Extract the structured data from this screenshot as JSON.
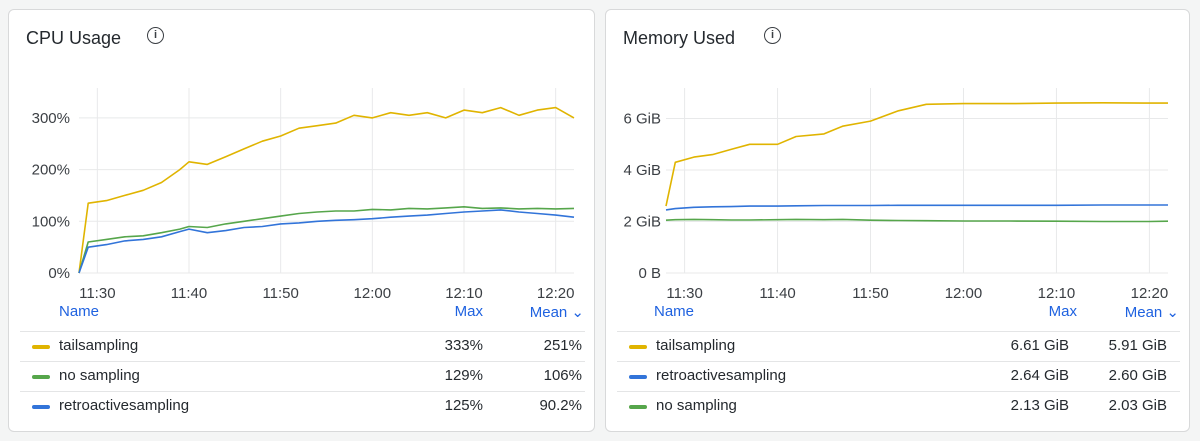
{
  "colors": {
    "tailsampling": "#e0b400",
    "no_sampling": "#56a64b",
    "retroactivesampling": "#3274d9"
  },
  "cpu_panel": {
    "title": "CPU Usage",
    "info_icon": "info-icon",
    "legend": {
      "headers": {
        "name": "Name",
        "max": "Max",
        "mean": "Mean ⌄"
      },
      "rows": [
        {
          "name": "tailsampling",
          "max": "333%",
          "mean": "251%"
        },
        {
          "name": "no sampling",
          "max": "129%",
          "mean": "106%"
        },
        {
          "name": "retroactivesampling",
          "max": "125%",
          "mean": "90.2%"
        }
      ]
    }
  },
  "mem_panel": {
    "title": "Memory Used",
    "info_icon": "info-icon",
    "legend": {
      "headers": {
        "name": "Name",
        "max": "Max",
        "mean": "Mean ⌄"
      },
      "rows": [
        {
          "name": "tailsampling",
          "max": "6.61 GiB",
          "mean": "5.91 GiB"
        },
        {
          "name": "retroactivesampling",
          "max": "2.64 GiB",
          "mean": "2.60 GiB"
        },
        {
          "name": "no sampling",
          "max": "2.13 GiB",
          "mean": "2.03 GiB"
        }
      ]
    }
  },
  "chart_data": [
    {
      "type": "line",
      "title": "CPU Usage",
      "x_ticks": [
        "11:30",
        "11:40",
        "11:50",
        "12:00",
        "12:10",
        "12:20"
      ],
      "y_ticks": [
        "0%",
        "100%",
        "200%",
        "300%"
      ],
      "ylim": [
        0,
        333
      ],
      "grid": true,
      "legend_position": "bottom",
      "x": [
        "11:28",
        "11:29",
        "11:31",
        "11:33",
        "11:35",
        "11:37",
        "11:39",
        "11:40",
        "11:42",
        "11:44",
        "11:46",
        "11:48",
        "11:50",
        "11:52",
        "11:54",
        "11:56",
        "11:58",
        "12:00",
        "12:02",
        "12:04",
        "12:06",
        "12:08",
        "12:10",
        "12:12",
        "12:14",
        "12:16",
        "12:18",
        "12:20",
        "12:22"
      ],
      "series": [
        {
          "name": "tailsampling",
          "values": [
            0,
            135,
            140,
            150,
            160,
            175,
            200,
            215,
            210,
            225,
            240,
            255,
            265,
            280,
            285,
            290,
            305,
            300,
            310,
            305,
            310,
            300,
            315,
            310,
            320,
            305,
            315,
            320,
            300
          ]
        },
        {
          "name": "no sampling",
          "values": [
            0,
            60,
            65,
            70,
            72,
            78,
            85,
            90,
            88,
            95,
            100,
            105,
            110,
            115,
            118,
            120,
            120,
            123,
            122,
            125,
            124,
            126,
            128,
            125,
            126,
            124,
            125,
            124,
            125
          ]
        },
        {
          "name": "retroactivesampling",
          "values": [
            0,
            50,
            55,
            62,
            65,
            70,
            80,
            85,
            78,
            82,
            88,
            90,
            95,
            97,
            100,
            102,
            103,
            105,
            108,
            110,
            112,
            115,
            118,
            120,
            122,
            118,
            115,
            112,
            108
          ]
        }
      ]
    },
    {
      "type": "line",
      "title": "Memory Used",
      "x_ticks": [
        "11:30",
        "11:40",
        "11:50",
        "12:00",
        "12:10",
        "12:20"
      ],
      "y_ticks": [
        "0 B",
        "2 GiB",
        "4 GiB",
        "6 GiB"
      ],
      "ylim": [
        0,
        7
      ],
      "grid": true,
      "legend_position": "bottom",
      "x": [
        "11:28",
        "11:29",
        "11:31",
        "11:33",
        "11:35",
        "11:37",
        "11:40",
        "11:42",
        "11:45",
        "11:47",
        "11:50",
        "11:53",
        "11:56",
        "12:00",
        "12:05",
        "12:10",
        "12:15",
        "12:20",
        "12:22"
      ],
      "series": [
        {
          "name": "tailsampling",
          "values": [
            2.6,
            4.3,
            4.5,
            4.6,
            4.8,
            5.0,
            5.0,
            5.3,
            5.4,
            5.7,
            5.9,
            6.3,
            6.55,
            6.58,
            6.58,
            6.6,
            6.61,
            6.6,
            6.6
          ]
        },
        {
          "name": "retroactivesampling",
          "values": [
            2.45,
            2.5,
            2.55,
            2.57,
            2.58,
            2.6,
            2.6,
            2.61,
            2.62,
            2.62,
            2.62,
            2.63,
            2.63,
            2.63,
            2.63,
            2.63,
            2.64,
            2.64,
            2.64
          ]
        },
        {
          "name": "no sampling",
          "values": [
            2.05,
            2.07,
            2.08,
            2.07,
            2.06,
            2.06,
            2.07,
            2.08,
            2.07,
            2.08,
            2.05,
            2.04,
            2.03,
            2.02,
            2.02,
            2.01,
            2.0,
            2.0,
            2.01
          ]
        }
      ]
    }
  ]
}
